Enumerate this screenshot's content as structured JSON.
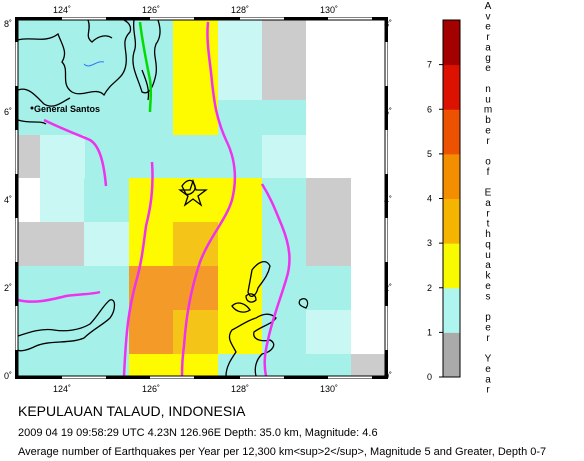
{
  "map": {
    "lon_ticks": [
      "124˚",
      "126˚",
      "128˚",
      "130˚"
    ],
    "lat_ticks": [
      "0˚",
      "2˚",
      "4˚",
      "6˚",
      "8˚"
    ],
    "place_label": "General Santos",
    "epicenter_icon": "star-icon"
  },
  "legend": {
    "title_chars": [
      "A",
      "v",
      "e",
      "r",
      "a",
      "g",
      "e",
      "",
      "n",
      "u",
      "m",
      "b",
      "e",
      "r",
      "",
      "o",
      "f",
      "",
      "E",
      "a",
      "r",
      "t",
      "h",
      "q",
      "u",
      "a",
      "k",
      "e",
      "s",
      "",
      "p",
      "e",
      "r",
      "",
      "Y",
      "e",
      "a",
      "r"
    ],
    "ticks": [
      "0",
      "1",
      "2",
      "3",
      "4",
      "5",
      "6",
      "7"
    ],
    "colors": [
      "#aaaaaa",
      "#aff5ef",
      "#f8fa00",
      "#f5b400",
      "#f28e00",
      "#ec5200",
      "#dc1100",
      "#a30000"
    ]
  },
  "colors": {
    "low": "#a5f0e9",
    "lowest": "#c9f7f3",
    "yellow": "#fefa00",
    "amber": "#f5c418",
    "orange": "#f39a28",
    "nodata": "#cccccc",
    "trench": "#ee33ee",
    "fault": "#00dd00"
  },
  "caption": {
    "title": "KEPULAUAN TALAUD, INDONESIA",
    "event": "2009 04 19 09:58:29 UTC 4.23N 126.96E Depth: 35.0 km, Magnitude: 4.6",
    "description": "Average number of Earthquakes per Year per 12,300 km<sup>2</sup>, Magnitude 5 and Greater, Depth 0-7"
  }
}
